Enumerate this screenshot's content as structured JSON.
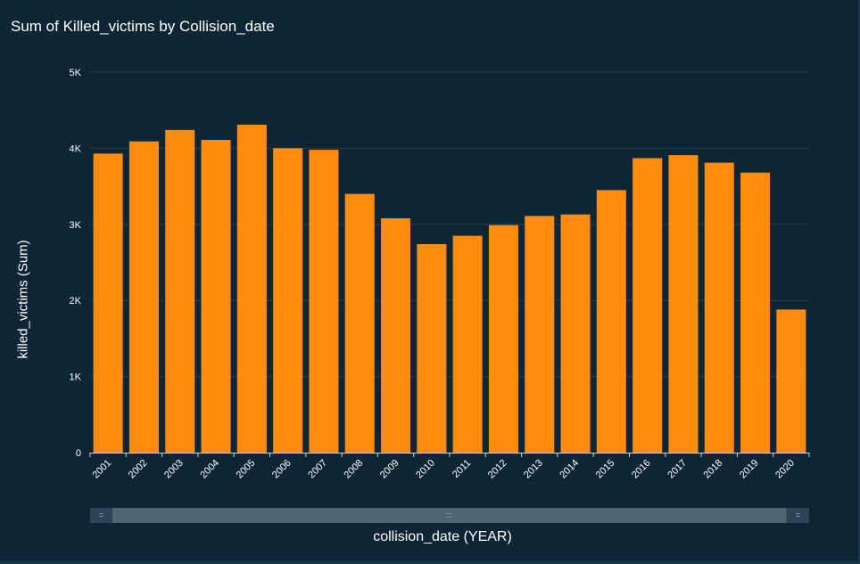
{
  "chart_data": {
    "type": "bar",
    "title": "Sum of Killed_victims by Collision_date",
    "xlabel": "collision_date (YEAR)",
    "ylabel": "killed_victims (Sum)",
    "categories": [
      "2001",
      "2002",
      "2003",
      "2004",
      "2005",
      "2006",
      "2007",
      "2008",
      "2009",
      "2010",
      "2011",
      "2012",
      "2013",
      "2014",
      "2015",
      "2016",
      "2017",
      "2018",
      "2019",
      "2020"
    ],
    "values": [
      3930,
      4090,
      4240,
      4110,
      4310,
      4000,
      3980,
      3400,
      3080,
      2740,
      2850,
      2990,
      3110,
      3130,
      3450,
      3870,
      3910,
      3810,
      3680,
      1880
    ],
    "ylim": [
      0,
      5000
    ],
    "yticks": [
      0,
      1000,
      2000,
      3000,
      4000,
      5000
    ],
    "ytick_labels": [
      "0",
      "1K",
      "2K",
      "3K",
      "4K",
      "5K"
    ],
    "grid": true,
    "bar_color": "#ff8c0f",
    "background_color": "#0d2535"
  },
  "scrollbar": {
    "left_handle": "=",
    "right_handle": "=",
    "grip": ":::"
  }
}
